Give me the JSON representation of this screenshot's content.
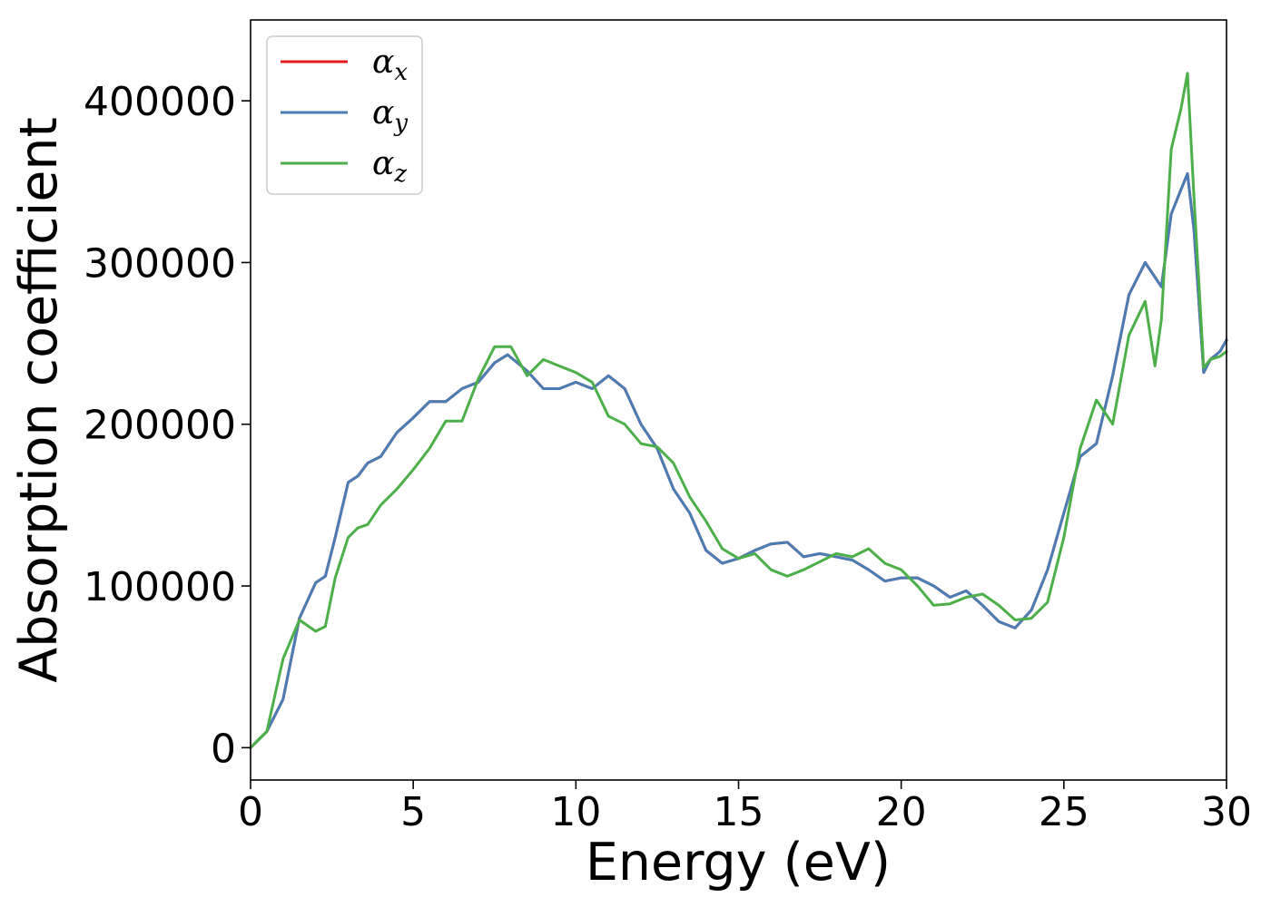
{
  "chart_data": {
    "type": "line",
    "xlabel": "Energy (eV)",
    "ylabel": "Absorption coefficient",
    "xlim": [
      0,
      30
    ],
    "ylim": [
      -20000,
      450000
    ],
    "xticks": [
      0,
      5,
      10,
      15,
      20,
      25,
      30
    ],
    "xtick_labels": [
      "0",
      "5",
      "10",
      "15",
      "20",
      "25",
      "30"
    ],
    "yticks": [
      0,
      100000,
      200000,
      300000,
      400000
    ],
    "ytick_labels": [
      "0",
      "100000",
      "200000",
      "300000",
      "400000"
    ],
    "grid": false,
    "legend": "top-left",
    "series": [
      {
        "name": "α_x",
        "label_base": "α",
        "label_sub": "x",
        "color": "#e41a1c",
        "x": [
          0,
          0.5,
          1.0,
          1.5,
          2.0,
          2.3,
          2.6,
          3.0,
          3.3,
          3.6,
          4.0,
          4.5,
          5.0,
          5.5,
          6.0,
          6.5,
          7.0,
          7.5,
          7.9,
          8.5,
          9.0,
          9.5,
          10.0,
          10.5,
          11.0,
          11.5,
          12.0,
          12.5,
          13.0,
          13.5,
          14.0,
          14.5,
          15.0,
          15.5,
          16.0,
          16.5,
          17.0,
          17.5,
          18.0,
          18.5,
          19.0,
          19.5,
          20.0,
          20.5,
          21.0,
          21.5,
          22.0,
          22.5,
          23.0,
          23.5,
          24.0,
          24.5,
          25.0,
          25.5,
          26.0,
          26.5,
          27.0,
          27.5,
          28.0,
          28.3,
          28.6,
          28.8,
          29.0,
          29.3,
          29.5,
          29.8,
          30.0
        ],
        "y": [
          0,
          10000,
          30000,
          80000,
          102000,
          106000,
          130000,
          164000,
          168000,
          176000,
          180000,
          195000,
          204000,
          214000,
          214000,
          222000,
          226000,
          238000,
          243000,
          233000,
          222000,
          222000,
          226000,
          222000,
          230000,
          222000,
          200000,
          185000,
          160000,
          145000,
          122000,
          114000,
          117000,
          122000,
          126000,
          127000,
          118000,
          120000,
          118000,
          116000,
          110000,
          103000,
          105000,
          105000,
          100000,
          93000,
          97000,
          88000,
          78000,
          74000,
          85000,
          110000,
          145000,
          180000,
          188000,
          230000,
          280000,
          300000,
          285000,
          330000,
          345000,
          355000,
          320000,
          232000,
          240000,
          245000,
          252000
        ]
      },
      {
        "name": "α_y",
        "label_base": "α",
        "label_sub": "y",
        "color": "#4a7db5",
        "x": [
          0,
          0.5,
          1.0,
          1.5,
          2.0,
          2.3,
          2.6,
          3.0,
          3.3,
          3.6,
          4.0,
          4.5,
          5.0,
          5.5,
          6.0,
          6.5,
          7.0,
          7.5,
          7.9,
          8.5,
          9.0,
          9.5,
          10.0,
          10.5,
          11.0,
          11.5,
          12.0,
          12.5,
          13.0,
          13.5,
          14.0,
          14.5,
          15.0,
          15.5,
          16.0,
          16.5,
          17.0,
          17.5,
          18.0,
          18.5,
          19.0,
          19.5,
          20.0,
          20.5,
          21.0,
          21.5,
          22.0,
          22.5,
          23.0,
          23.5,
          24.0,
          24.5,
          25.0,
          25.5,
          26.0,
          26.5,
          27.0,
          27.5,
          28.0,
          28.3,
          28.6,
          28.8,
          29.0,
          29.3,
          29.5,
          29.8,
          30.0
        ],
        "y": [
          0,
          10000,
          30000,
          80000,
          102000,
          106000,
          130000,
          164000,
          168000,
          176000,
          180000,
          195000,
          204000,
          214000,
          214000,
          222000,
          226000,
          238000,
          243000,
          233000,
          222000,
          222000,
          226000,
          222000,
          230000,
          222000,
          200000,
          185000,
          160000,
          145000,
          122000,
          114000,
          117000,
          122000,
          126000,
          127000,
          118000,
          120000,
          118000,
          116000,
          110000,
          103000,
          105000,
          105000,
          100000,
          93000,
          97000,
          88000,
          78000,
          74000,
          85000,
          110000,
          145000,
          180000,
          188000,
          230000,
          280000,
          300000,
          285000,
          330000,
          345000,
          355000,
          320000,
          232000,
          240000,
          245000,
          252000
        ]
      },
      {
        "name": "α_z",
        "label_base": "α",
        "label_sub": "z",
        "color": "#4daf4a",
        "x": [
          0,
          0.5,
          1.0,
          1.5,
          2.0,
          2.3,
          2.6,
          3.0,
          3.3,
          3.6,
          4.0,
          4.5,
          5.0,
          5.5,
          6.0,
          6.5,
          7.0,
          7.5,
          8.0,
          8.5,
          9.0,
          9.5,
          10.0,
          10.5,
          11.0,
          11.5,
          12.0,
          12.5,
          13.0,
          13.5,
          14.0,
          14.5,
          15.0,
          15.5,
          16.0,
          16.5,
          17.0,
          17.5,
          18.0,
          18.5,
          19.0,
          19.5,
          20.0,
          20.5,
          21.0,
          21.5,
          22.0,
          22.5,
          23.0,
          23.5,
          24.0,
          24.5,
          25.0,
          25.5,
          26.0,
          26.5,
          27.0,
          27.5,
          27.8,
          28.0,
          28.3,
          28.6,
          28.8,
          29.0,
          29.3,
          29.5,
          29.8,
          30.0
        ],
        "y": [
          0,
          10000,
          55000,
          79000,
          72000,
          75000,
          105000,
          130000,
          136000,
          138000,
          150000,
          160000,
          172000,
          185000,
          202000,
          202000,
          228000,
          248000,
          248000,
          230000,
          240000,
          236000,
          232000,
          226000,
          205000,
          200000,
          188000,
          186000,
          176000,
          155000,
          140000,
          123000,
          117000,
          120000,
          110000,
          106000,
          110000,
          115000,
          120000,
          118000,
          123000,
          114000,
          110000,
          100000,
          88000,
          89000,
          93000,
          95000,
          88000,
          79000,
          80000,
          90000,
          130000,
          185000,
          215000,
          200000,
          255000,
          276000,
          236000,
          265000,
          370000,
          395000,
          417000,
          340000,
          235000,
          240000,
          242000,
          245000
        ]
      }
    ]
  }
}
